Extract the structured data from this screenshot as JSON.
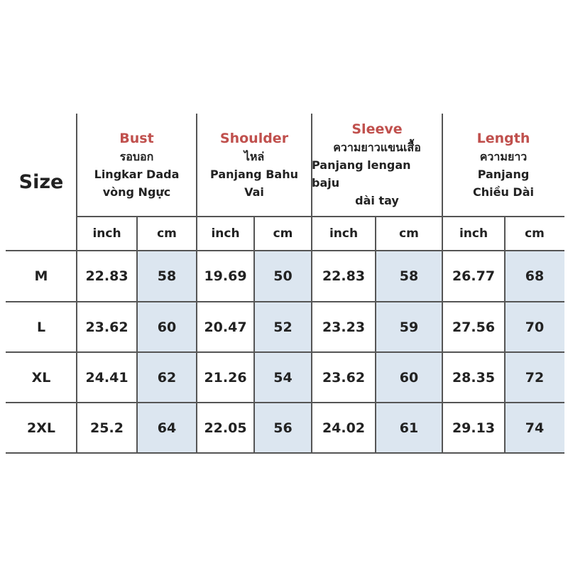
{
  "table": {
    "size_header": "Size",
    "groups": [
      {
        "title": "Bust",
        "lines": [
          "รอบอก",
          "Lingkar Dada",
          "vòng Ngực"
        ],
        "units": [
          "inch",
          "cm"
        ]
      },
      {
        "title": "Shoulder",
        "lines": [
          "ไหล่",
          "Panjang Bahu",
          "Vai"
        ],
        "units": [
          "inch",
          "cm"
        ]
      },
      {
        "title": "Sleeve",
        "lines": [
          "ความยาวแขนเสื้อ",
          "Panjang lengan baju",
          "dài tay"
        ],
        "units": [
          "inch",
          "cm"
        ]
      },
      {
        "title": "Length",
        "lines": [
          "ความยาว",
          "Panjang",
          "Chiều Dài"
        ],
        "units": [
          "inch",
          "cm"
        ]
      }
    ],
    "rows": [
      {
        "size": "M",
        "values": [
          22.83,
          58,
          19.69,
          50,
          22.83,
          58,
          26.77,
          68
        ]
      },
      {
        "size": "L",
        "values": [
          23.62,
          60,
          20.47,
          52,
          23.23,
          59,
          27.56,
          70
        ]
      },
      {
        "size": "XL",
        "values": [
          24.41,
          62,
          21.26,
          54,
          23.62,
          60,
          28.35,
          72
        ]
      },
      {
        "size": "2XL",
        "values": [
          25.2,
          64,
          22.05,
          56,
          24.02,
          61,
          29.13,
          74
        ]
      }
    ]
  }
}
